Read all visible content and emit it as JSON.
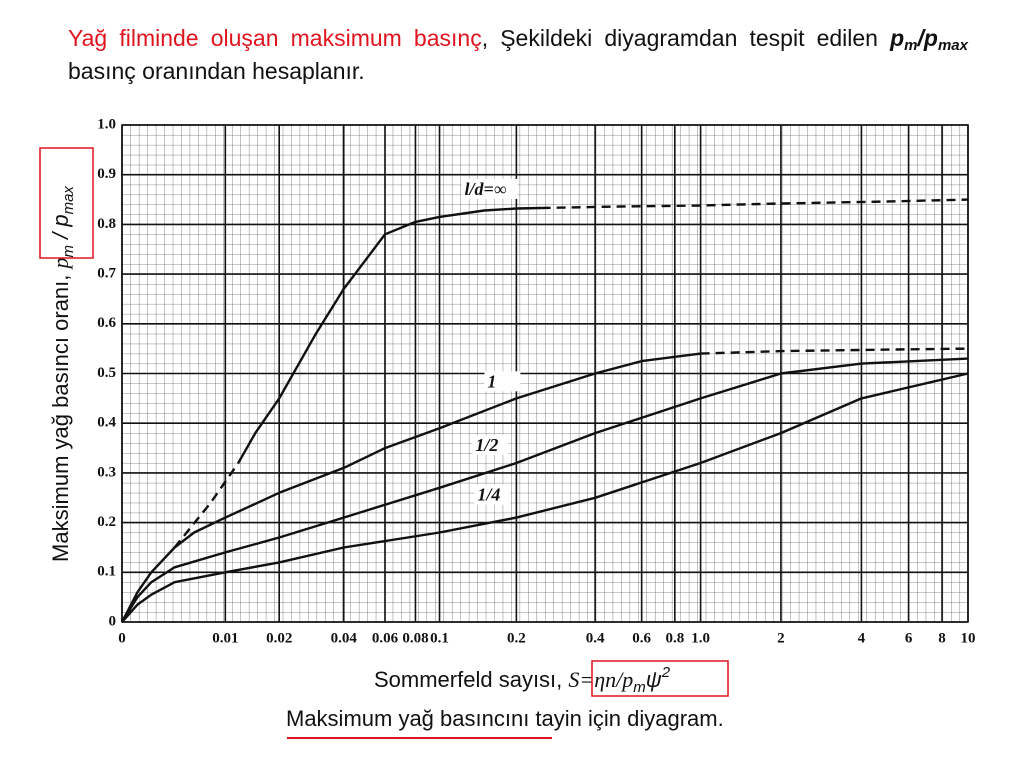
{
  "slide": {
    "title_red": "Yağ filminde oluşan maksimum basınç",
    "title_rest": ", Şekildeki diyagramdan tespit edilen ",
    "ratio": [
      "p",
      "m",
      "/p",
      "max"
    ],
    "title_end": " basınç oranından hesaplanır.",
    "caption": "Maksimum yağ basıncını tayin için diyagram."
  },
  "chart_data": {
    "type": "line",
    "ylabel": [
      "Maksimum yağ basıncı oranı, ",
      "p",
      "m",
      " / p",
      "max"
    ],
    "xlabel": [
      "Sommerfeld sayısı, ",
      "S=ηn/p",
      "m",
      "ψ",
      "2"
    ],
    "xlim": [
      0,
      10
    ],
    "ylim": [
      0,
      1
    ],
    "xticks": [
      0,
      0.01,
      0.02,
      0.04,
      0.06,
      0.08,
      0.1,
      0.2,
      0.4,
      0.6,
      0.8,
      {
        "value": 1,
        "label": "1.0"
      },
      2,
      4,
      6,
      8,
      10
    ],
    "yticks": [
      0,
      0.1,
      0.2,
      0.3,
      0.4,
      0.5,
      0.6,
      0.7,
      0.8,
      0.9,
      {
        "value": 1,
        "label": "1.0"
      }
    ],
    "grid": true,
    "series": [
      {
        "name": "l/d=∞",
        "color": "#111111",
        "style": "solid",
        "x": [
          0.012,
          0.015,
          0.02,
          0.03,
          0.04,
          0.06,
          0.08,
          0.1,
          0.15,
          0.2,
          0.25
        ],
        "values": [
          0.32,
          0.38,
          0.45,
          0.58,
          0.67,
          0.78,
          0.805,
          0.815,
          0.828,
          0.832,
          0.833
        ]
      },
      {
        "color": "#111111",
        "style": "dashed",
        "x": [
          0.004,
          0.008,
          0.012
        ],
        "values": [
          0.15,
          0.24,
          0.32
        ]
      },
      {
        "color": "#111111",
        "style": "dashed",
        "x": [
          0.25,
          0.5,
          1,
          2,
          5,
          10
        ],
        "values": [
          0.833,
          0.836,
          0.838,
          0.842,
          0.846,
          0.85
        ]
      },
      {
        "name": "1",
        "color": "#111111",
        "style": "solid",
        "x": [
          0,
          0.001,
          0.002,
          0.004,
          0.006,
          0.01,
          0.02,
          0.04,
          0.06,
          0.1,
          0.2,
          0.4,
          0.6,
          1
        ],
        "values": [
          0,
          0.06,
          0.1,
          0.15,
          0.18,
          0.21,
          0.26,
          0.31,
          0.35,
          0.39,
          0.45,
          0.5,
          0.525,
          0.54
        ]
      },
      {
        "color": "#111111",
        "style": "dashed",
        "x": [
          1,
          2,
          5,
          10
        ],
        "values": [
          0.54,
          0.545,
          0.548,
          0.55
        ]
      },
      {
        "name": "1/2",
        "color": "#111111",
        "style": "solid",
        "x": [
          0,
          0.001,
          0.002,
          0.004,
          0.01,
          0.02,
          0.04,
          0.1,
          0.2,
          0.4,
          1,
          2,
          4,
          10
        ],
        "values": [
          0,
          0.05,
          0.08,
          0.11,
          0.14,
          0.17,
          0.21,
          0.27,
          0.32,
          0.38,
          0.45,
          0.5,
          0.52,
          0.53
        ]
      },
      {
        "name": "1/4",
        "color": "#111111",
        "style": "solid",
        "x": [
          0,
          0.001,
          0.002,
          0.004,
          0.01,
          0.02,
          0.04,
          0.1,
          0.2,
          0.4,
          1,
          2,
          4,
          10
        ],
        "values": [
          0,
          0.035,
          0.055,
          0.08,
          0.1,
          0.12,
          0.15,
          0.18,
          0.21,
          0.25,
          0.32,
          0.38,
          0.45,
          0.5
        ]
      }
    ]
  }
}
